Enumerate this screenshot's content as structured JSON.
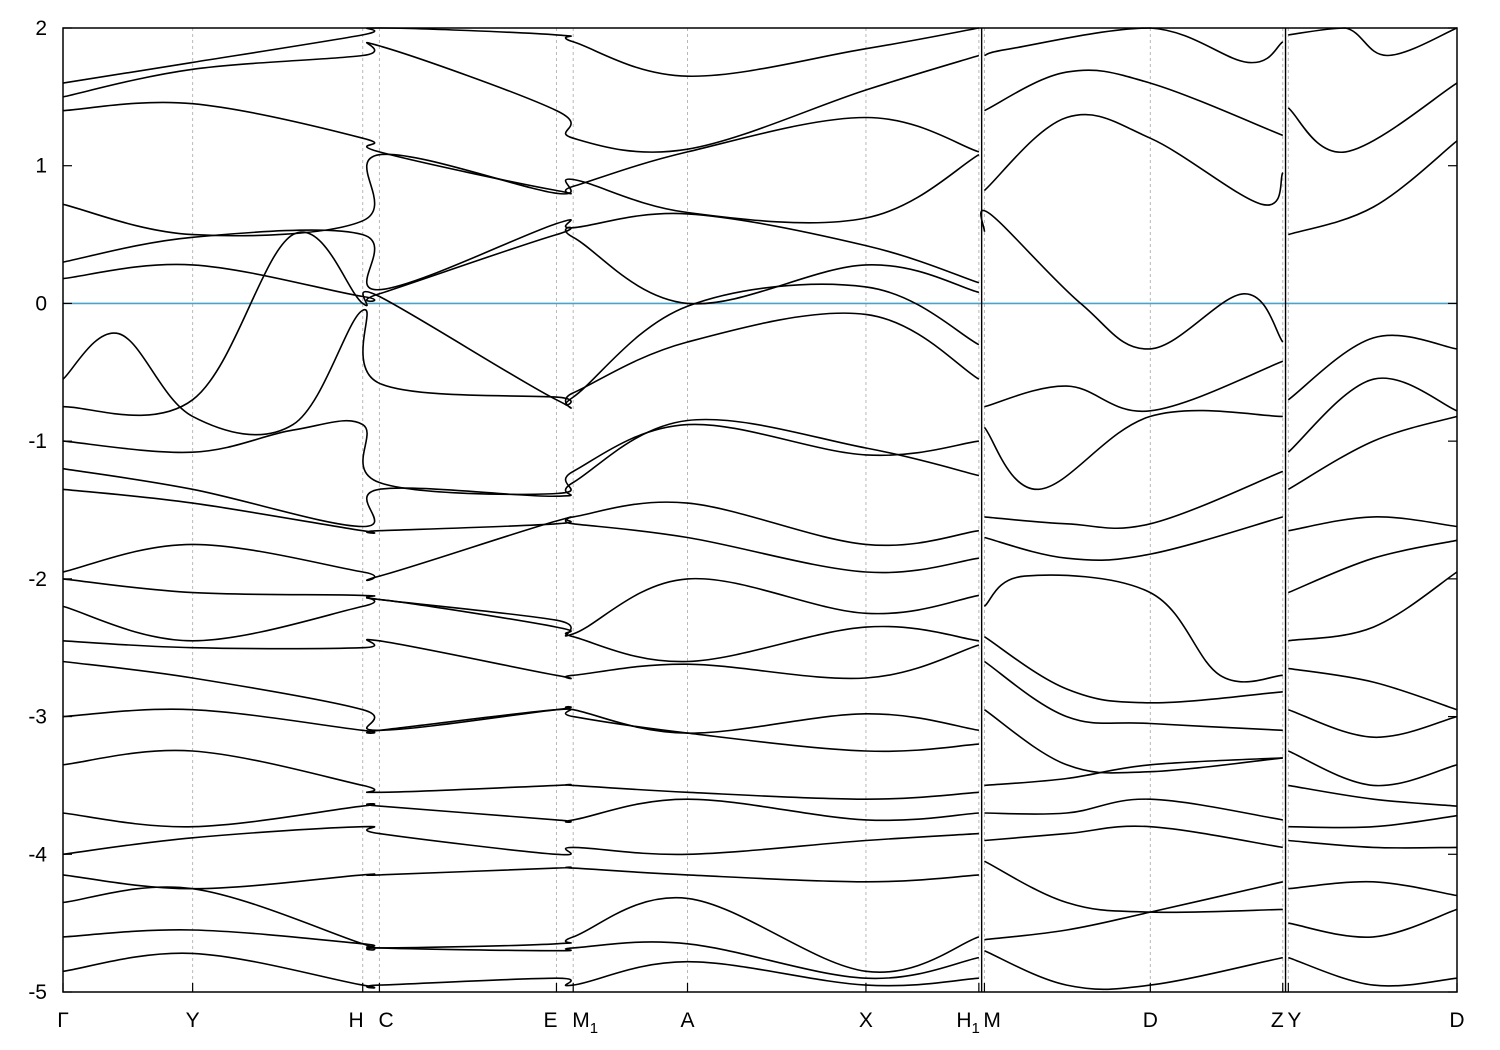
{
  "chart_data": {
    "type": "line",
    "title": "",
    "xlabel": "",
    "ylabel": "",
    "ylim": [
      -5,
      2
    ],
    "yticks": [
      -5,
      -4,
      -3,
      -2,
      -1,
      0,
      1,
      2
    ],
    "reference_line": {
      "y": 0,
      "color": "#4aa3c8"
    },
    "line_color": "#000000",
    "grid": "dashed vertical lines at high-symmetry points",
    "kpoints": [
      {
        "label": "Γ",
        "sub": "",
        "x": 0.0
      },
      {
        "label": "Y",
        "sub": "",
        "x": 0.093
      },
      {
        "label": "H",
        "sub": "",
        "x": 0.215
      },
      {
        "label": "C",
        "sub": "",
        "x": 0.227
      },
      {
        "label": "E",
        "sub": "",
        "x": 0.354
      },
      {
        "label": "M",
        "sub": "1",
        "x": 0.366
      },
      {
        "label": "A",
        "sub": "",
        "x": 0.448
      },
      {
        "label": "X",
        "sub": "",
        "x": 0.576
      },
      {
        "label": "H",
        "sub": "1",
        "x": 0.657
      },
      {
        "label": "M",
        "sub": "",
        "x": 0.661
      },
      {
        "label": "D",
        "sub": "",
        "x": 0.78
      },
      {
        "label": "Z",
        "sub": "",
        "x": 0.875
      },
      {
        "label": "Y",
        "sub": "",
        "x": 0.879
      },
      {
        "label": "D",
        "sub": "",
        "x": 1.0
      }
    ],
    "segment_breaks": [
      0.659,
      0.877
    ],
    "bands": [
      {
        "x": [
          0.0,
          0.093,
          0.215,
          0.227,
          0.354,
          0.366,
          0.448,
          0.576,
          0.657
        ],
        "y": [
          1.6,
          1.75,
          1.95,
          2.0,
          1.95,
          1.9,
          1.65,
          1.85,
          2.0
        ]
      },
      {
        "x": [
          0.0,
          0.093,
          0.215,
          0.227,
          0.354,
          0.366,
          0.448,
          0.576,
          0.657
        ],
        "y": [
          1.5,
          1.7,
          1.8,
          1.87,
          1.4,
          1.2,
          1.12,
          1.55,
          1.8
        ]
      },
      {
        "x": [
          0.0,
          0.093,
          0.215,
          0.227,
          0.354,
          0.366,
          0.448,
          0.576,
          0.657
        ],
        "y": [
          1.4,
          1.45,
          1.2,
          1.1,
          0.82,
          0.85,
          1.1,
          1.35,
          1.1
        ]
      },
      {
        "x": [
          0.0,
          0.093,
          0.215,
          0.227,
          0.354,
          0.366,
          0.448,
          0.576,
          0.657
        ],
        "y": [
          0.72,
          0.5,
          0.6,
          1.08,
          0.8,
          0.9,
          0.66,
          0.62,
          1.08
        ]
      },
      {
        "x": [
          0.0,
          0.093,
          0.215,
          0.227,
          0.354,
          0.366,
          0.448,
          0.576,
          0.657
        ],
        "y": [
          0.3,
          0.48,
          0.5,
          0.1,
          0.58,
          0.55,
          0.65,
          0.42,
          0.15
        ]
      },
      {
        "x": [
          0.0,
          0.093,
          0.215,
          0.227,
          0.354,
          0.366,
          0.448,
          0.576,
          0.657
        ],
        "y": [
          0.18,
          0.28,
          0.05,
          0.07,
          0.5,
          0.48,
          0.0,
          0.28,
          0.08
        ]
      },
      {
        "x": [
          0.0,
          0.04,
          0.093,
          0.165,
          0.215,
          0.227,
          0.354,
          0.366,
          0.448,
          0.576,
          0.657
        ],
        "y": [
          -0.55,
          -0.22,
          -0.82,
          -0.88,
          -0.05,
          -0.58,
          -0.68,
          -0.68,
          -0.02,
          0.12,
          -0.3
        ]
      },
      {
        "x": [
          0.0,
          0.093,
          0.165,
          0.215,
          0.227,
          0.354,
          0.366,
          0.448,
          0.576,
          0.657
        ],
        "y": [
          -0.75,
          -0.7,
          0.5,
          0.0,
          0.05,
          -0.7,
          -0.65,
          -0.28,
          -0.08,
          -0.55
        ]
      },
      {
        "x": [
          0.0,
          0.093,
          0.165,
          0.215,
          0.227,
          0.354,
          0.366,
          0.448,
          0.576,
          0.657
        ],
        "y": [
          -1.0,
          -1.08,
          -0.92,
          -0.88,
          -1.3,
          -1.38,
          -1.22,
          -0.88,
          -1.1,
          -1.0
        ]
      },
      {
        "x": [
          0.0,
          0.093,
          0.215,
          0.227,
          0.354,
          0.366,
          0.448,
          0.576,
          0.657
        ],
        "y": [
          -1.2,
          -1.35,
          -1.62,
          -1.35,
          -1.4,
          -1.3,
          -0.85,
          -1.05,
          -1.25
        ]
      },
      {
        "x": [
          0.0,
          0.093,
          0.215,
          0.227,
          0.354,
          0.366,
          0.448,
          0.576,
          0.657
        ],
        "y": [
          -1.35,
          -1.45,
          -1.65,
          -1.65,
          -1.6,
          -1.55,
          -1.45,
          -1.75,
          -1.65
        ]
      },
      {
        "x": [
          0.0,
          0.093,
          0.215,
          0.227,
          0.354,
          0.366,
          0.448,
          0.576,
          0.657
        ],
        "y": [
          -1.95,
          -1.75,
          -1.95,
          -1.98,
          -1.58,
          -1.6,
          -1.7,
          -1.95,
          -1.85
        ]
      },
      {
        "x": [
          0.0,
          0.093,
          0.215,
          0.227,
          0.354,
          0.366,
          0.448,
          0.576,
          0.657
        ],
        "y": [
          -2.0,
          -2.1,
          -2.12,
          -2.15,
          -2.3,
          -2.4,
          -2.0,
          -2.25,
          -2.12
        ]
      },
      {
        "x": [
          0.0,
          0.093,
          0.215,
          0.227,
          0.354,
          0.366,
          0.448,
          0.576,
          0.657
        ],
        "y": [
          -2.2,
          -2.45,
          -2.2,
          -2.15,
          -2.35,
          -2.42,
          -2.6,
          -2.35,
          -2.45
        ]
      },
      {
        "x": [
          0.0,
          0.093,
          0.215,
          0.227,
          0.354,
          0.366,
          0.448,
          0.576,
          0.657
        ],
        "y": [
          -2.45,
          -2.5,
          -2.5,
          -2.45,
          -2.7,
          -2.7,
          -2.62,
          -2.72,
          -2.48
        ]
      },
      {
        "x": [
          0.0,
          0.093,
          0.215,
          0.227,
          0.354,
          0.366,
          0.448,
          0.576,
          0.657
        ],
        "y": [
          -2.6,
          -2.72,
          -2.95,
          -3.1,
          -2.95,
          -2.95,
          -3.12,
          -2.98,
          -3.1
        ]
      },
      {
        "x": [
          0.0,
          0.093,
          0.215,
          0.227,
          0.354,
          0.366,
          0.448,
          0.576,
          0.657
        ],
        "y": [
          -3.0,
          -2.95,
          -3.1,
          -3.1,
          -2.95,
          -3.0,
          -3.12,
          -3.25,
          -3.2
        ]
      },
      {
        "x": [
          0.0,
          0.093,
          0.215,
          0.227,
          0.354,
          0.366,
          0.448,
          0.576,
          0.657
        ],
        "y": [
          -3.35,
          -3.25,
          -3.5,
          -3.55,
          -3.5,
          -3.5,
          -3.55,
          -3.6,
          -3.55
        ]
      },
      {
        "x": [
          0.0,
          0.093,
          0.215,
          0.227,
          0.354,
          0.366,
          0.448,
          0.576,
          0.657
        ],
        "y": [
          -3.7,
          -3.8,
          -3.65,
          -3.65,
          -3.75,
          -3.75,
          -3.6,
          -3.75,
          -3.7
        ]
      },
      {
        "x": [
          0.0,
          0.093,
          0.215,
          0.227,
          0.354,
          0.366,
          0.448,
          0.576,
          0.657
        ],
        "y": [
          -4.0,
          -3.88,
          -3.8,
          -3.85,
          -4.0,
          -3.95,
          -4.0,
          -3.9,
          -3.85
        ]
      },
      {
        "x": [
          0.0,
          0.093,
          0.215,
          0.227,
          0.354,
          0.366,
          0.448,
          0.576,
          0.657
        ],
        "y": [
          -4.15,
          -4.25,
          -4.15,
          -4.15,
          -4.1,
          -4.1,
          -4.15,
          -4.2,
          -4.15
        ]
      },
      {
        "x": [
          0.0,
          0.093,
          0.215,
          0.227,
          0.354,
          0.366,
          0.448,
          0.576,
          0.657
        ],
        "y": [
          -4.35,
          -4.25,
          -4.65,
          -4.68,
          -4.65,
          -4.6,
          -4.32,
          -4.85,
          -4.6
        ]
      },
      {
        "x": [
          0.0,
          0.093,
          0.215,
          0.227,
          0.354,
          0.366,
          0.448,
          0.576,
          0.657
        ],
        "y": [
          -4.6,
          -4.55,
          -4.65,
          -4.68,
          -4.7,
          -4.68,
          -4.65,
          -4.9,
          -4.75
        ]
      },
      {
        "x": [
          0.0,
          0.093,
          0.215,
          0.227,
          0.354,
          0.366,
          0.448,
          0.576,
          0.657
        ],
        "y": [
          -4.85,
          -4.72,
          -4.95,
          -4.95,
          -4.9,
          -4.95,
          -4.78,
          -4.95,
          -4.9
        ]
      },
      {
        "x": [
          0.661,
          0.68,
          0.78,
          0.85,
          0.875
        ],
        "y": [
          1.8,
          1.85,
          2.0,
          1.75,
          1.9
        ]
      },
      {
        "x": [
          0.661,
          0.72,
          0.78,
          0.875
        ],
        "y": [
          1.4,
          1.68,
          1.6,
          1.22
        ]
      },
      {
        "x": [
          0.661,
          0.72,
          0.78,
          0.86,
          0.875
        ],
        "y": [
          0.82,
          1.35,
          1.2,
          0.72,
          0.95
        ]
      },
      {
        "x": [
          0.661,
          0.665,
          0.73,
          0.78,
          0.847,
          0.875
        ],
        "y": [
          0.52,
          0.65,
          0.0,
          -0.33,
          0.07,
          -0.28
        ]
      },
      {
        "x": [
          0.661,
          0.72,
          0.78,
          0.875
        ],
        "y": [
          -0.75,
          -0.6,
          -0.78,
          -0.42
        ]
      },
      {
        "x": [
          0.661,
          0.7,
          0.78,
          0.875
        ],
        "y": [
          -0.9,
          -1.35,
          -0.82,
          -0.82
        ]
      },
      {
        "x": [
          0.661,
          0.72,
          0.78,
          0.875
        ],
        "y": [
          -1.55,
          -1.6,
          -1.6,
          -1.22
        ]
      },
      {
        "x": [
          0.661,
          0.72,
          0.78,
          0.875
        ],
        "y": [
          -1.7,
          -1.85,
          -1.82,
          -1.55
        ]
      },
      {
        "x": [
          0.661,
          0.69,
          0.78,
          0.83,
          0.875
        ],
        "y": [
          -2.2,
          -1.98,
          -2.1,
          -2.7,
          -2.7
        ]
      },
      {
        "x": [
          0.661,
          0.72,
          0.78,
          0.875
        ],
        "y": [
          -2.42,
          -2.8,
          -2.9,
          -2.82
        ]
      },
      {
        "x": [
          0.661,
          0.72,
          0.78,
          0.875
        ],
        "y": [
          -2.6,
          -3.0,
          -3.05,
          -3.1
        ]
      },
      {
        "x": [
          0.661,
          0.72,
          0.78,
          0.875
        ],
        "y": [
          -2.95,
          -3.35,
          -3.4,
          -3.3
        ]
      },
      {
        "x": [
          0.661,
          0.72,
          0.78,
          0.875
        ],
        "y": [
          -3.5,
          -3.45,
          -3.35,
          -3.3
        ]
      },
      {
        "x": [
          0.661,
          0.72,
          0.78,
          0.875
        ],
        "y": [
          -3.7,
          -3.7,
          -3.6,
          -3.75
        ]
      },
      {
        "x": [
          0.661,
          0.72,
          0.78,
          0.875
        ],
        "y": [
          -3.9,
          -3.85,
          -3.8,
          -3.95
        ]
      },
      {
        "x": [
          0.661,
          0.72,
          0.78,
          0.875
        ],
        "y": [
          -4.05,
          -4.35,
          -4.42,
          -4.4
        ]
      },
      {
        "x": [
          0.661,
          0.72,
          0.78,
          0.875
        ],
        "y": [
          -4.62,
          -4.55,
          -4.42,
          -4.2
        ]
      },
      {
        "x": [
          0.661,
          0.72,
          0.78,
          0.875
        ],
        "y": [
          -4.7,
          -4.95,
          -4.95,
          -4.75
        ]
      },
      {
        "x": [
          0.879,
          0.92,
          0.95,
          1.0
        ],
        "y": [
          1.95,
          2.0,
          1.8,
          2.0
        ]
      },
      {
        "x": [
          0.879,
          0.92,
          1.0
        ],
        "y": [
          1.42,
          1.1,
          1.6
        ]
      },
      {
        "x": [
          0.879,
          0.94,
          1.0
        ],
        "y": [
          0.5,
          0.7,
          1.18
        ]
      },
      {
        "x": [
          0.879,
          0.94,
          1.0
        ],
        "y": [
          -0.7,
          -0.25,
          -0.33
        ]
      },
      {
        "x": [
          0.879,
          0.94,
          1.0
        ],
        "y": [
          -1.08,
          -0.55,
          -0.78
        ]
      },
      {
        "x": [
          0.879,
          0.94,
          1.0
        ],
        "y": [
          -1.35,
          -1.0,
          -0.82
        ]
      },
      {
        "x": [
          0.879,
          0.94,
          1.0
        ],
        "y": [
          -1.65,
          -1.55,
          -1.62
        ]
      },
      {
        "x": [
          0.879,
          0.94,
          1.0
        ],
        "y": [
          -2.1,
          -1.85,
          -1.72
        ]
      },
      {
        "x": [
          0.879,
          0.94,
          1.0
        ],
        "y": [
          -2.45,
          -2.35,
          -1.95
        ]
      },
      {
        "x": [
          0.879,
          0.94,
          1.0
        ],
        "y": [
          -2.65,
          -2.75,
          -2.95
        ]
      },
      {
        "x": [
          0.879,
          0.94,
          1.0
        ],
        "y": [
          -2.95,
          -3.15,
          -3.0
        ]
      },
      {
        "x": [
          0.879,
          0.94,
          1.0
        ],
        "y": [
          -3.25,
          -3.5,
          -3.35
        ]
      },
      {
        "x": [
          0.879,
          0.94,
          1.0
        ],
        "y": [
          -3.5,
          -3.6,
          -3.65
        ]
      },
      {
        "x": [
          0.879,
          0.94,
          1.0
        ],
        "y": [
          -3.8,
          -3.8,
          -3.72
        ]
      },
      {
        "x": [
          0.879,
          0.94,
          1.0
        ],
        "y": [
          -3.9,
          -3.95,
          -3.95
        ]
      },
      {
        "x": [
          0.879,
          0.94,
          1.0
        ],
        "y": [
          -4.25,
          -4.2,
          -4.3
        ]
      },
      {
        "x": [
          0.879,
          0.94,
          1.0
        ],
        "y": [
          -4.5,
          -4.6,
          -4.4
        ]
      },
      {
        "x": [
          0.879,
          0.94,
          1.0
        ],
        "y": [
          -4.75,
          -4.95,
          -4.9
        ]
      }
    ]
  }
}
